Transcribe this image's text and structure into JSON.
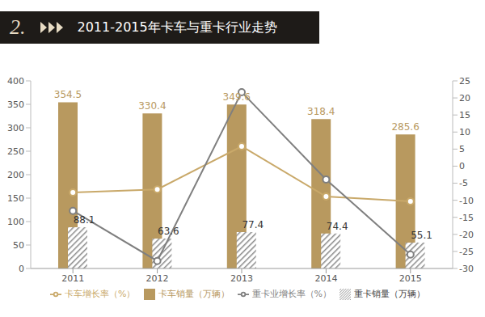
{
  "chart_data": {
    "type": "bar",
    "title": "2011-2015年卡车与重卡行业走势",
    "annotations": [
      "2."
    ],
    "categories": [
      "2011",
      "2012",
      "2013",
      "2014",
      "2015"
    ],
    "series": [
      {
        "name": "卡车销量（万辆）",
        "type": "bar",
        "color": "#b8995f",
        "values": [
          354.5,
          330.4,
          349.6,
          318.4,
          285.6
        ],
        "data_labels": true
      },
      {
        "name": "重卡销量（万辆）",
        "type": "bar",
        "color": "#8c8c8c",
        "values": [
          88.1,
          63.6,
          77.4,
          74.4,
          55.1
        ],
        "data_labels": true
      },
      {
        "name": "卡车增长率（%）",
        "type": "line",
        "axis": "y2",
        "color": "#c9a96a",
        "marker": "circle",
        "values": [
          -7.7,
          -6.8,
          5.8,
          -8.9,
          -10.3
        ]
      },
      {
        "name": "重卡业增长率（%）",
        "type": "line",
        "axis": "y2",
        "color": "#7f7f7f",
        "marker": "circle",
        "values": [
          -13.1,
          -27.8,
          21.7,
          -3.9,
          -25.9
        ]
      }
    ],
    "ylim": [
      0,
      400
    ],
    "yticks": [
      0,
      50,
      100,
      150,
      200,
      250,
      300,
      350,
      400
    ],
    "y2lim": [
      -30,
      25
    ],
    "y2ticks": [
      -30,
      -25,
      -20,
      -15,
      -10,
      -5,
      0,
      5,
      10,
      15,
      20,
      25
    ],
    "grid": false,
    "legend": "bottom"
  }
}
